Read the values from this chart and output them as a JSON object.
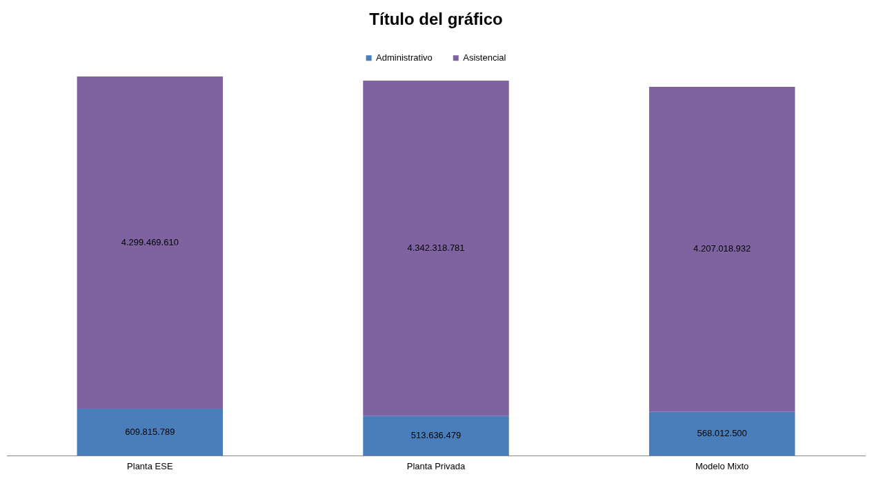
{
  "chart_data": {
    "type": "bar",
    "title": "Título del gráfico",
    "stacked": true,
    "legend": "top",
    "grid": false,
    "categories": [
      "Planta ESE",
      "Planta Privada",
      "Modelo Mixto"
    ],
    "series": [
      {
        "name": "Administrativo",
        "color": "#4a7ebb",
        "values": [
          609815789,
          513636479,
          568012500
        ],
        "value_labels": [
          "609.815.789",
          "513.636.479",
          "568.012.500"
        ]
      },
      {
        "name": "Asistencial",
        "color": "#7f63a0",
        "values": [
          4299469610,
          4342318781,
          4207018932
        ],
        "value_labels": [
          "4.299.469.610",
          "4.342.318.781",
          "4.207.018.932"
        ]
      }
    ]
  }
}
